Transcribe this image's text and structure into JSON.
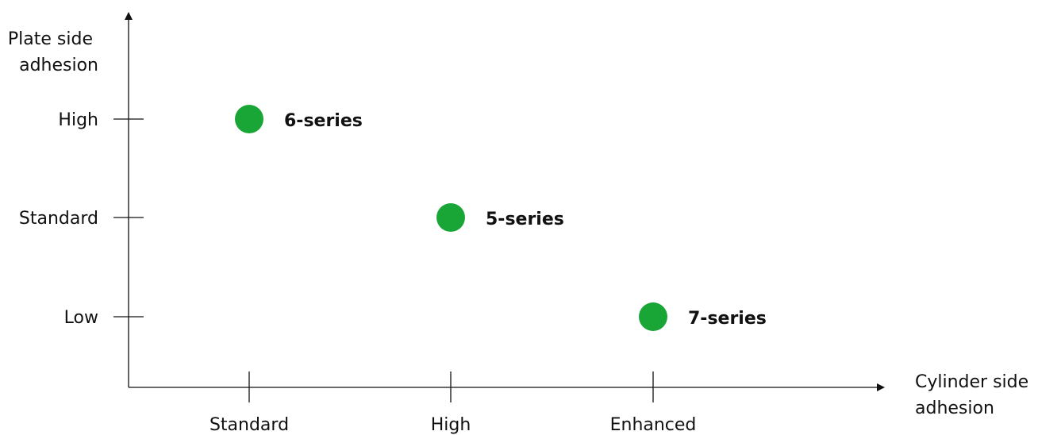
{
  "chart_data": {
    "type": "scatter",
    "xlabel": [
      "Cylinder side",
      "adhesion"
    ],
    "ylabel": [
      "Plate side",
      "adhesion"
    ],
    "x_categories": [
      "Standard",
      "High",
      "Enhanced"
    ],
    "y_categories": [
      "Low",
      "Standard",
      "High"
    ],
    "points": [
      {
        "label": "6-series",
        "x": "Standard",
        "y": "High"
      },
      {
        "label": "5-series",
        "x": "High",
        "y": "Standard"
      },
      {
        "label": "7-series",
        "x": "Enhanced",
        "y": "Low"
      }
    ],
    "marker_color": "#1aa537",
    "grid": false,
    "legend": "none"
  }
}
